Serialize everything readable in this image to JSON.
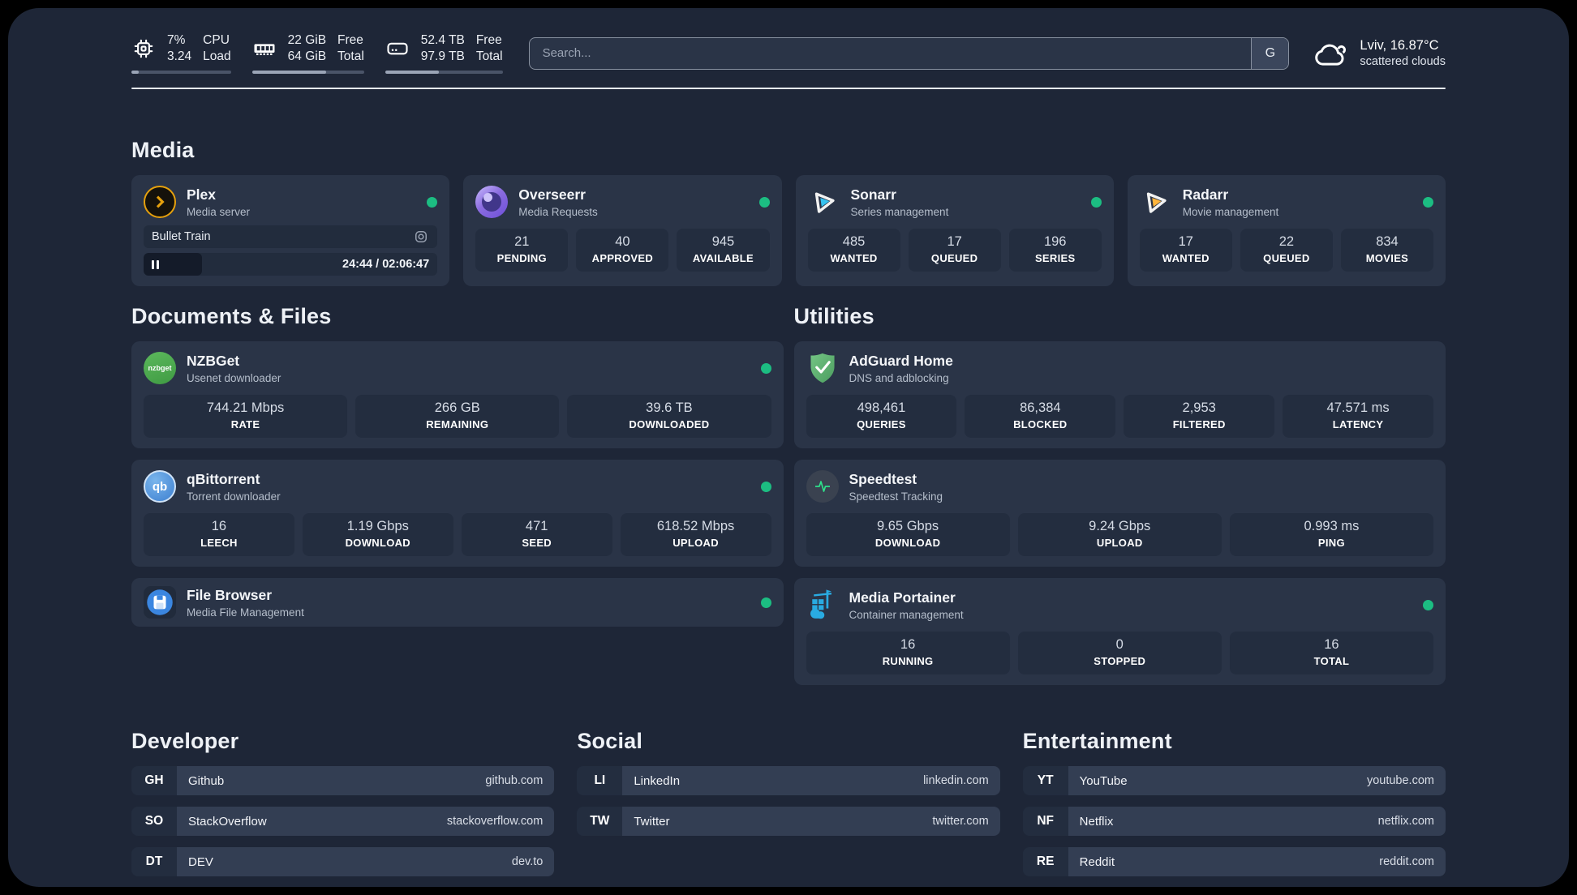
{
  "header": {
    "metrics": [
      {
        "icon": "cpu-chip-icon",
        "values": [
          "7%",
          "3.24"
        ],
        "labels": [
          "CPU",
          "Load"
        ],
        "progress_percent": 7
      },
      {
        "icon": "memory-icon",
        "values": [
          "22 GiB",
          "64 GiB"
        ],
        "labels": [
          "Free",
          "Total"
        ],
        "progress_percent": 66
      },
      {
        "icon": "hard-drive-icon",
        "values": [
          "52.4 TB",
          "97.9 TB"
        ],
        "labels": [
          "Free",
          "Total"
        ],
        "progress_percent": 46
      }
    ],
    "search": {
      "placeholder": "Search...",
      "engine_button_label": "G"
    },
    "weather": {
      "icon": "cloud-icon",
      "location_temperature": "Lviv, 16.87°C",
      "condition": "scattered clouds"
    }
  },
  "sections": {
    "media": {
      "title": "Media",
      "cards": {
        "plex": {
          "title": "Plex",
          "subtitle": "Media server",
          "icon": "plex-icon",
          "status": "online",
          "now_playing": {
            "title": "Bullet Train",
            "time": "24:44 / 02:06:47",
            "progress_percent": 20
          }
        },
        "overseerr": {
          "title": "Overseerr",
          "subtitle": "Media Requests",
          "icon": "overseerr-icon",
          "status": "online",
          "stats": [
            {
              "value": "21",
              "label": "PENDING"
            },
            {
              "value": "40",
              "label": "APPROVED"
            },
            {
              "value": "945",
              "label": "AVAILABLE"
            }
          ]
        },
        "sonarr": {
          "title": "Sonarr",
          "subtitle": "Series management",
          "icon": "sonarr-icon",
          "status": "online",
          "stats": [
            {
              "value": "485",
              "label": "WANTED"
            },
            {
              "value": "17",
              "label": "QUEUED"
            },
            {
              "value": "196",
              "label": "SERIES"
            }
          ]
        },
        "radarr": {
          "title": "Radarr",
          "subtitle": "Movie management",
          "icon": "radarr-icon",
          "status": "online",
          "stats": [
            {
              "value": "17",
              "label": "WANTED"
            },
            {
              "value": "22",
              "label": "QUEUED"
            },
            {
              "value": "834",
              "label": "MOVIES"
            }
          ]
        }
      }
    },
    "documents": {
      "title": "Documents & Files",
      "cards": {
        "nzbget": {
          "title": "NZBGet",
          "subtitle": "Usenet downloader",
          "icon": "nzbget-icon",
          "status": "online",
          "stats": [
            {
              "value": "744.21 Mbps",
              "label": "RATE"
            },
            {
              "value": "266 GB",
              "label": "REMAINING"
            },
            {
              "value": "39.6 TB",
              "label": "DOWNLOADED"
            }
          ]
        },
        "qbittorrent": {
          "title": "qBittorrent",
          "subtitle": "Torrent downloader",
          "icon": "qbittorrent-icon",
          "status": "online",
          "stats": [
            {
              "value": "16",
              "label": "LEECH"
            },
            {
              "value": "1.19 Gbps",
              "label": "DOWNLOAD"
            },
            {
              "value": "471",
              "label": "SEED"
            },
            {
              "value": "618.52 Mbps",
              "label": "UPLOAD"
            }
          ]
        },
        "filebrowser": {
          "title": "File Browser",
          "subtitle": "Media File Management",
          "icon": "filebrowser-icon",
          "status": "online"
        }
      }
    },
    "utilities": {
      "title": "Utilities",
      "cards": {
        "adguard": {
          "title": "AdGuard Home",
          "subtitle": "DNS and adblocking",
          "icon": "adguard-icon",
          "stats": [
            {
              "value": "498,461",
              "label": "QUERIES"
            },
            {
              "value": "86,384",
              "label": "BLOCKED"
            },
            {
              "value": "2,953",
              "label": "FILTERED"
            },
            {
              "value": "47.571 ms",
              "label": "LATENCY"
            }
          ]
        },
        "speedtest": {
          "title": "Speedtest",
          "subtitle": "Speedtest Tracking",
          "icon": "speedtest-icon",
          "stats": [
            {
              "value": "9.65 Gbps",
              "label": "DOWNLOAD"
            },
            {
              "value": "9.24 Gbps",
              "label": "UPLOAD"
            },
            {
              "value": "0.993 ms",
              "label": "PING"
            }
          ]
        },
        "portainer": {
          "title": "Media Portainer",
          "subtitle": "Container management",
          "icon": "portainer-icon",
          "status": "online",
          "stats": [
            {
              "value": "16",
              "label": "RUNNING"
            },
            {
              "value": "0",
              "label": "STOPPED"
            },
            {
              "value": "16",
              "label": "TOTAL"
            }
          ]
        }
      }
    },
    "bookmarks": [
      {
        "title": "Developer",
        "items": [
          {
            "abbr": "GH",
            "name": "Github",
            "url": "github.com"
          },
          {
            "abbr": "SO",
            "name": "StackOverflow",
            "url": "stackoverflow.com"
          },
          {
            "abbr": "DT",
            "name": "DEV",
            "url": "dev.to"
          }
        ]
      },
      {
        "title": "Social",
        "items": [
          {
            "abbr": "LI",
            "name": "LinkedIn",
            "url": "linkedin.com"
          },
          {
            "abbr": "TW",
            "name": "Twitter",
            "url": "twitter.com"
          }
        ]
      },
      {
        "title": "Entertainment",
        "items": [
          {
            "abbr": "YT",
            "name": "YouTube",
            "url": "youtube.com"
          },
          {
            "abbr": "NF",
            "name": "Netflix",
            "url": "netflix.com"
          },
          {
            "abbr": "RE",
            "name": "Reddit",
            "url": "reddit.com"
          }
        ]
      }
    ]
  },
  "colors": {
    "status_online": "#1cbd82",
    "background": "#1e2637",
    "card": "#2a3447",
    "tile": "#232d3f",
    "accent_plex": "#e5a00d"
  }
}
